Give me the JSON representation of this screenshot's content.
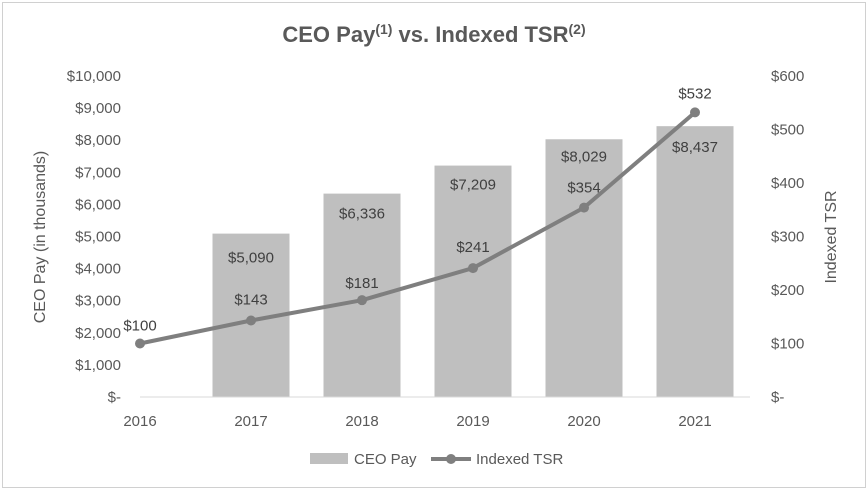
{
  "chart_data": {
    "type": "bar",
    "title": {
      "main": "CEO Pay",
      "sup1": "(1)",
      "mid": " vs. Indexed TSR",
      "sup2": "(2)"
    },
    "categories": [
      "2016",
      "2017",
      "2018",
      "2019",
      "2020",
      "2021"
    ],
    "bar_series": {
      "name": "CEO Pay",
      "values": [
        null,
        5090,
        6336,
        7209,
        8029,
        8437
      ],
      "labels": [
        "",
        "$5,090",
        "$6,336",
        "$7,209",
        "$8,029",
        "$8,437"
      ],
      "color": "#bfbfbf"
    },
    "line_series": {
      "name": "Indexed TSR",
      "values": [
        100,
        143,
        181,
        241,
        354,
        532
      ],
      "labels": [
        "$100",
        "$143",
        "$181",
        "$241",
        "$354",
        "$532"
      ],
      "color": "#7f7f7f"
    },
    "y_left": {
      "label": "CEO Pay (in thousands)",
      "min": 0,
      "max": 10000,
      "ticks": [
        0,
        1000,
        2000,
        3000,
        4000,
        5000,
        6000,
        7000,
        8000,
        9000,
        10000
      ],
      "tick_labels": [
        "$-",
        "$1,000",
        "$2,000",
        "$3,000",
        "$4,000",
        "$5,000",
        "$6,000",
        "$7,000",
        "$8,000",
        "$9,000",
        "$10,000"
      ]
    },
    "y_right": {
      "label": "Indexed TSR",
      "min": 0,
      "max": 600,
      "ticks": [
        0,
        100,
        200,
        300,
        400,
        500,
        600
      ],
      "tick_labels": [
        "$-",
        "$100",
        "$200",
        "$300",
        "$400",
        "$500",
        "$600"
      ]
    },
    "grid": false,
    "legend": {
      "position": "bottom",
      "items": [
        "CEO Pay",
        "Indexed TSR"
      ]
    }
  }
}
